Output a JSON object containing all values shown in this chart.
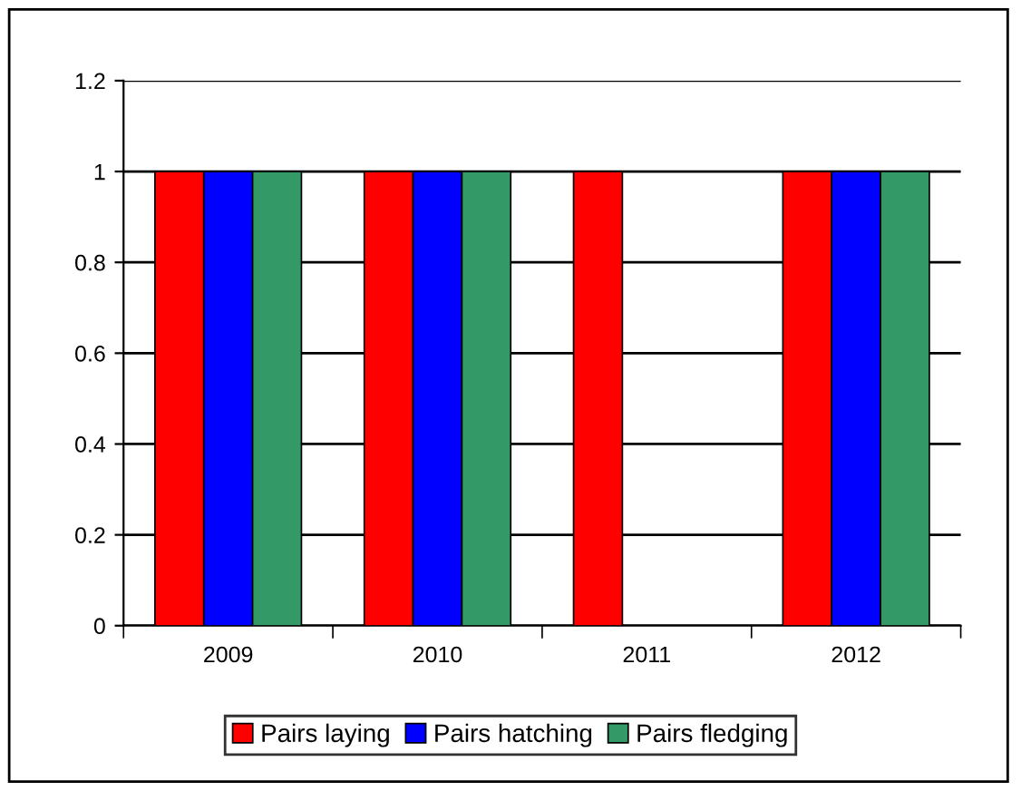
{
  "chart_data": {
    "type": "bar",
    "categories": [
      "2009",
      "2010",
      "2011",
      "2012"
    ],
    "series": [
      {
        "name": "Pairs laying",
        "color": "#ff0000",
        "values": [
          1,
          1,
          1,
          1
        ]
      },
      {
        "name": "Pairs hatching",
        "color": "#0000ff",
        "values": [
          1,
          1,
          null,
          1
        ]
      },
      {
        "name": "Pairs fledging",
        "color": "#339966",
        "values": [
          1,
          1,
          null,
          1
        ]
      }
    ],
    "ylim": [
      0,
      1.2
    ],
    "yticks": [
      0,
      0.2,
      0.4,
      0.6,
      0.8,
      1,
      1.2
    ],
    "grid": "y",
    "legend": "bottom"
  }
}
